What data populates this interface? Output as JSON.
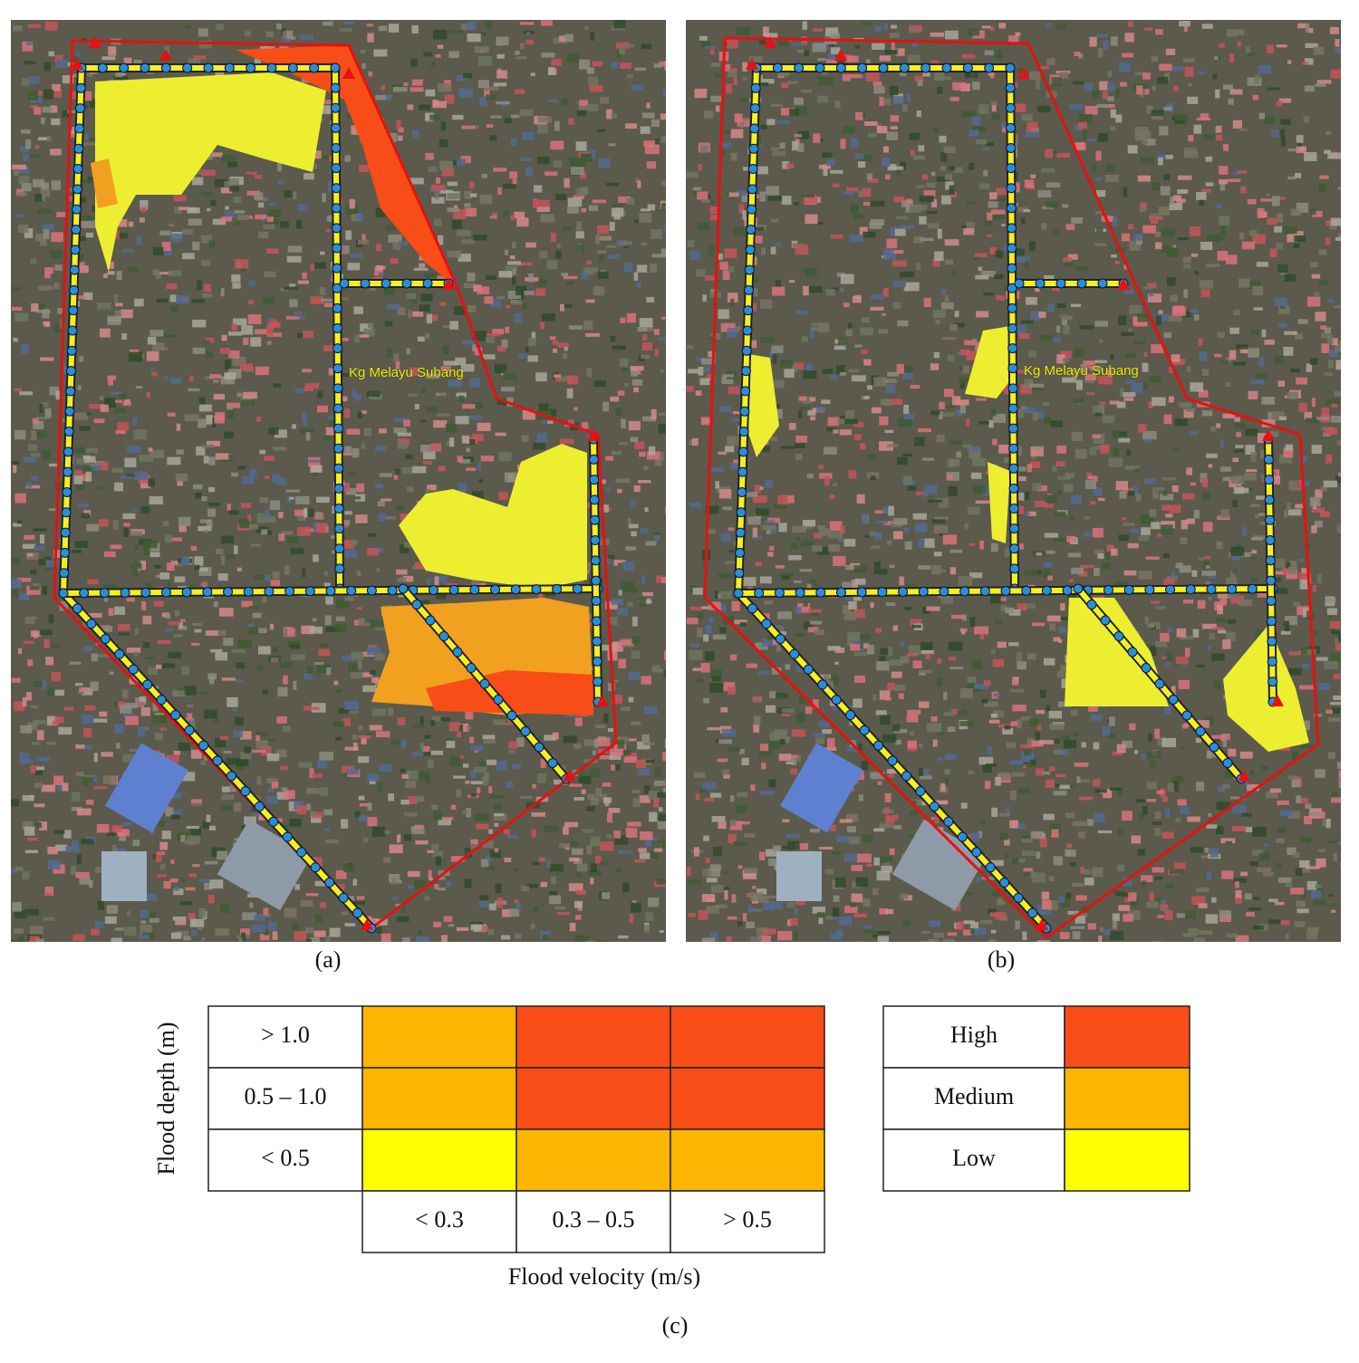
{
  "panels": [
    {
      "label": "(a)",
      "place_label": "Kg Melayu Subang"
    },
    {
      "label": "(b)",
      "place_label": "Kg Melayu Subang"
    }
  ],
  "risk_matrix": {
    "y_axis_title": "Flood depth (m)",
    "x_axis_title": "Flood velocity (m/s)",
    "depth_classes": [
      "> 1.0",
      "0.5 – 1.0",
      "< 0.5"
    ],
    "velocity_classes": [
      "< 0.3",
      "0.3 – 0.5",
      "> 0.5"
    ],
    "cell_colors": [
      [
        "#fcb500",
        "#f84d16",
        "#f84d16"
      ],
      [
        "#fcb500",
        "#f84d16",
        "#f84d16"
      ],
      [
        "#fefe00",
        "#fcb500",
        "#fcb500"
      ]
    ],
    "label": "(c)"
  },
  "legend": [
    {
      "level": "High",
      "color": "#f84d16"
    },
    {
      "level": "Medium",
      "color": "#fcb500"
    },
    {
      "level": "Low",
      "color": "#fefe00"
    }
  ]
}
